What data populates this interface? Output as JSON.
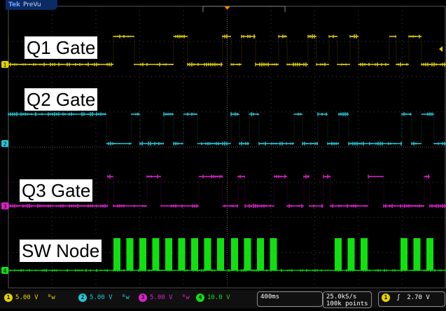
{
  "header": {
    "brand": "Tek",
    "mode": "PreVu"
  },
  "labels": {
    "q1": "Q1 Gate",
    "q2": "Q2 Gate",
    "q3": "Q3 Gate",
    "sw": "SW Node"
  },
  "channels": [
    {
      "id": "1",
      "scale": "5.00 V",
      "color": "#e6d200"
    },
    {
      "id": "2",
      "scale": "5.00 V",
      "color": "#20c8d8"
    },
    {
      "id": "3",
      "scale": "5.00 V",
      "color": "#e020d0"
    },
    {
      "id": "4",
      "scale": "10.0 V",
      "color": "#10e010"
    }
  ],
  "bw_symbol": "ᴮw",
  "timebase": "400ms",
  "sample": {
    "rate": "25.0kS/s",
    "points": "100k points"
  },
  "trigger": {
    "channel": "1",
    "slope_icon": "rising-edge-icon",
    "level": "2.70 V"
  },
  "colors": {
    "grid": "#3c3c3c",
    "bar": "#101010"
  }
}
